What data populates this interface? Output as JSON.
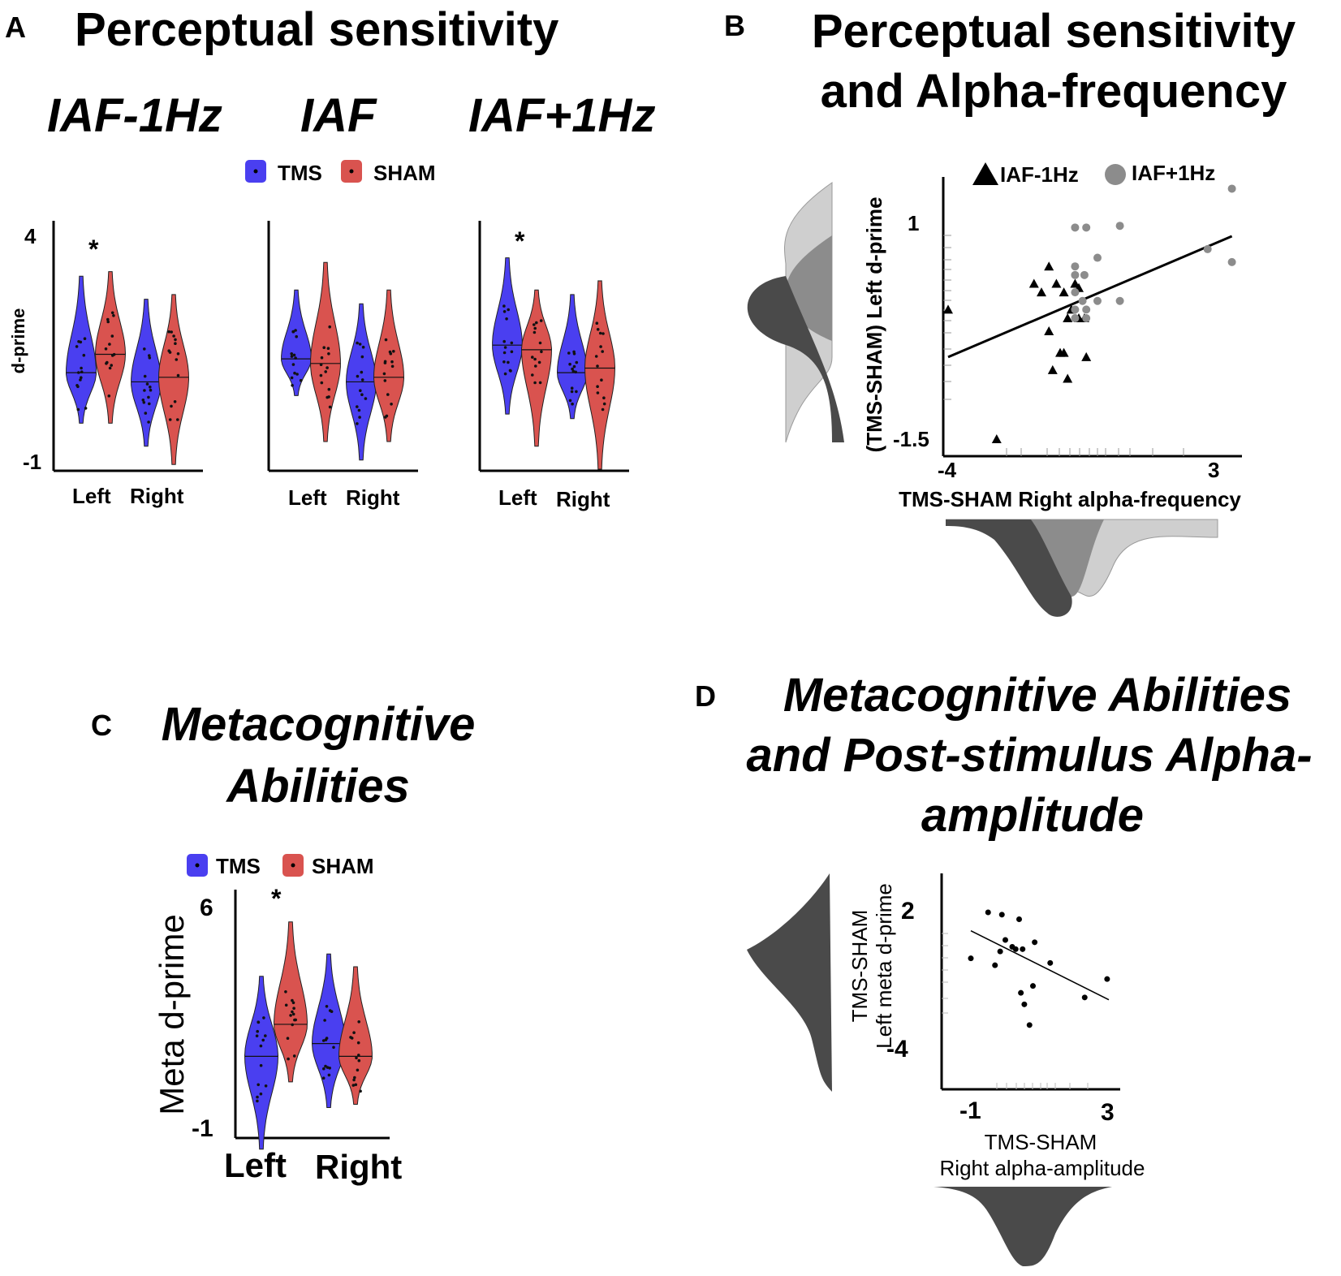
{
  "panel_letters": {
    "a": "A",
    "b": "B",
    "c": "C",
    "d": "D"
  },
  "titles": {
    "a": "Perceptual sensitivity",
    "b_line1": "Perceptual sensitivity",
    "b_line2": "and Alpha-frequency",
    "c_line1": "Metacognitive",
    "c_line2": "Abilities",
    "d_line1": "Metacognitive Abilities",
    "d_line2": "and Post-stimulus Alpha-",
    "d_line3": "amplitude"
  },
  "colors": {
    "tms": "#4a3ff0",
    "sham": "#d9534f",
    "dark": "#4a4a4a",
    "mid": "#8c8c8c",
    "light": "#cfcfcf"
  },
  "chart_data": [
    {
      "id": "A",
      "type": "violin",
      "title": "Perceptual sensitivity",
      "legend": [
        "TMS",
        "SHAM"
      ],
      "ylabel": "d-prime",
      "ylim": [
        -1,
        4
      ],
      "yticks": [
        "4",
        "-1"
      ],
      "panels": [
        {
          "subtitle": "IAF-1Hz",
          "categories": [
            "Left",
            "Right"
          ],
          "significance": {
            "Left": "*"
          },
          "series": [
            {
              "name": "TMS",
              "medians": [
                1.1,
                0.9
              ],
              "range": [
                [
                  0.0,
                  3.2
                ],
                [
                  -0.5,
                  2.7
                ]
              ]
            },
            {
              "name": "SHAM",
              "medians": [
                1.5,
                1.0
              ],
              "range": [
                [
                  0.0,
                  3.3
                ],
                [
                  -0.9,
                  2.8
                ]
              ]
            }
          ]
        },
        {
          "subtitle": "IAF",
          "categories": [
            "Left",
            "Right"
          ],
          "significance": {},
          "series": [
            {
              "name": "TMS",
              "medians": [
                1.4,
                0.9
              ],
              "range": [
                [
                  0.6,
                  2.9
                ],
                [
                  -0.8,
                  2.6
                ]
              ]
            },
            {
              "name": "SHAM",
              "medians": [
                1.3,
                1.0
              ],
              "range": [
                [
                  -0.4,
                  3.5
                ],
                [
                  -0.4,
                  2.9
                ]
              ]
            }
          ]
        },
        {
          "subtitle": "IAF+1Hz",
          "categories": [
            "Left",
            "Right"
          ],
          "significance": {
            "Left": "*"
          },
          "series": [
            {
              "name": "TMS",
              "medians": [
                1.7,
                1.1
              ],
              "range": [
                [
                  0.2,
                  3.6
                ],
                [
                  0.1,
                  2.8
                ]
              ]
            },
            {
              "name": "SHAM",
              "medians": [
                1.6,
                1.2
              ],
              "range": [
                [
                  -0.5,
                  2.9
                ],
                [
                  -1.0,
                  3.1
                ]
              ]
            }
          ]
        }
      ]
    },
    {
      "id": "B",
      "type": "scatter",
      "title": "Perceptual sensitivity and Alpha-frequency",
      "xlabel": "TMS-SHAM Right alpha-frequency",
      "ylabel": "(TMS-SHAM) Left d-prime",
      "xlim": [
        -4,
        3.5
      ],
      "ylim": [
        -1.6,
        1.5
      ],
      "xticks": [
        "-4",
        "3"
      ],
      "yticks": [
        "1",
        "-1.5"
      ],
      "legend": [
        "IAF-1Hz",
        "IAF+1Hz"
      ],
      "series": [
        {
          "name": "IAF-1Hz",
          "marker": "triangle",
          "points": [
            [
              -4.0,
              0.0
            ],
            [
              -2.7,
              -1.5
            ],
            [
              -1.7,
              0.3
            ],
            [
              -1.5,
              0.2
            ],
            [
              -1.3,
              0.5
            ],
            [
              -1.1,
              0.3
            ],
            [
              -0.9,
              0.2
            ],
            [
              -0.7,
              0.0
            ],
            [
              -0.6,
              0.3
            ],
            [
              -0.5,
              0.25
            ],
            [
              -0.8,
              -0.1
            ],
            [
              -1.0,
              -0.5
            ],
            [
              -0.8,
              -0.8
            ],
            [
              -0.9,
              -0.5
            ],
            [
              -0.5,
              -0.1
            ],
            [
              -0.35,
              -0.1
            ],
            [
              -0.3,
              -0.55
            ],
            [
              -1.3,
              -0.25
            ],
            [
              -1.2,
              -0.7
            ]
          ]
        },
        {
          "name": "IAF+1Hz",
          "marker": "circle",
          "points": [
            [
              -0.6,
              0.95
            ],
            [
              -0.3,
              0.95
            ],
            [
              -0.6,
              0.5
            ],
            [
              -0.6,
              0.4
            ],
            [
              -0.6,
              0.2
            ],
            [
              -0.6,
              0.0
            ],
            [
              -0.6,
              -0.1
            ],
            [
              -0.4,
              0.1
            ],
            [
              -0.3,
              0.0
            ],
            [
              -0.3,
              -0.1
            ],
            [
              0.0,
              0.1
            ],
            [
              0.0,
              0.6
            ],
            [
              0.6,
              0.1
            ],
            [
              0.6,
              0.97
            ],
            [
              2.95,
              0.7
            ],
            [
              3.6,
              1.4
            ],
            [
              3.6,
              0.55
            ],
            [
              -0.35,
              0.4
            ]
          ]
        }
      ],
      "fit_line": [
        [
          -4.0,
          -0.55
        ],
        [
          3.6,
          0.85
        ]
      ]
    },
    {
      "id": "C",
      "type": "violin",
      "title": "Metacognitive Abilities",
      "legend": [
        "TMS",
        "SHAM"
      ],
      "ylabel": "Meta d-prime",
      "ylim": [
        -1,
        6
      ],
      "yticks": [
        "6",
        "-1"
      ],
      "categories": [
        "Left",
        "Right"
      ],
      "significance": {
        "Left": "*"
      },
      "series": [
        {
          "name": "TMS",
          "medians": [
            1.4,
            1.8
          ],
          "range": [
            [
              -1.5,
              3.9
            ],
            [
              -0.2,
              4.6
            ]
          ]
        },
        {
          "name": "SHAM",
          "medians": [
            2.4,
            1.4
          ],
          "range": [
            [
              0.6,
              5.6
            ],
            [
              -0.1,
              4.2
            ]
          ]
        }
      ]
    },
    {
      "id": "D",
      "type": "scatter",
      "title": "Metacognitive Abilities and Post-stimulus Alpha-amplitude",
      "xlabel_line1": "TMS-SHAM",
      "xlabel_line2": "Right alpha-amplitude",
      "ylabel_line1": "TMS-SHAM",
      "ylabel_line2": "Left meta d-prime",
      "xlim": [
        -1.3,
        3.1
      ],
      "ylim": [
        -5.0,
        3.0
      ],
      "xticks": [
        "-1",
        "3"
      ],
      "yticks": [
        "2",
        "-4"
      ],
      "series": [
        {
          "name": "points",
          "marker": "circle",
          "points": [
            [
              -1.0,
              0.0
            ],
            [
              -0.5,
              2.0
            ],
            [
              -0.3,
              -0.3
            ],
            [
              -0.1,
              1.9
            ],
            [
              0.0,
              0.8
            ],
            [
              0.2,
              0.5
            ],
            [
              0.3,
              0.4
            ],
            [
              0.4,
              1.7
            ],
            [
              0.45,
              -1.5
            ],
            [
              0.5,
              0.4
            ],
            [
              0.55,
              -2.0
            ],
            [
              0.7,
              -2.9
            ],
            [
              0.8,
              -1.2
            ],
            [
              0.85,
              0.7
            ],
            [
              1.3,
              -0.2
            ],
            [
              2.3,
              -1.7
            ],
            [
              2.95,
              -0.9
            ],
            [
              -0.15,
              0.3
            ]
          ]
        }
      ],
      "fit_line": [
        [
          -1.0,
          1.2
        ],
        [
          3.0,
          -1.8
        ]
      ]
    }
  ]
}
